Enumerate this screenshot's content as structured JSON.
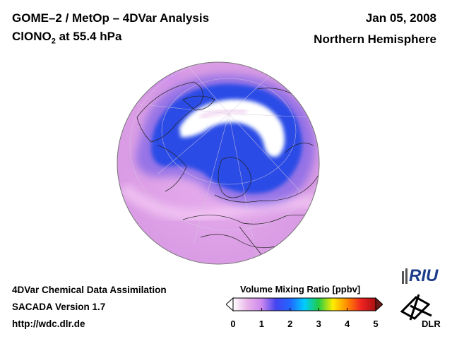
{
  "header": {
    "title": "GOME–2 / MetOp – 4DVar Analysis",
    "species_prefix": "ClONO",
    "species_subscript": "2",
    "species_suffix": " at 55.4 hPa",
    "date": "Jan 05, 2008",
    "region": "Northern Hemisphere"
  },
  "footer": {
    "line1": "4DVar Chemical Data Assimilation",
    "line2": "SACADA Version 1.7",
    "line3": "http://wdc.dlr.de"
  },
  "colorbar": {
    "title": "Volume Mixing Ratio [ppbv]",
    "min": 0,
    "max": 5,
    "ticks": [
      "0",
      "1",
      "2",
      "3",
      "4",
      "5"
    ],
    "colors": [
      "#ffffff",
      "#e8b4e8",
      "#cc88ee",
      "#4444ee",
      "#2266ff",
      "#00ccff",
      "#22cc44",
      "#ffee00",
      "#ff8800",
      "#ee2222",
      "#aa1111"
    ]
  },
  "map": {
    "projection": "orthographic, centered on North Pole region",
    "background_color": "#e6a6ec",
    "vortex_color": "#2a4fe0",
    "high_value_color": "#ffffff"
  },
  "logos": {
    "riu": "RIU",
    "dlr": "DLR"
  }
}
